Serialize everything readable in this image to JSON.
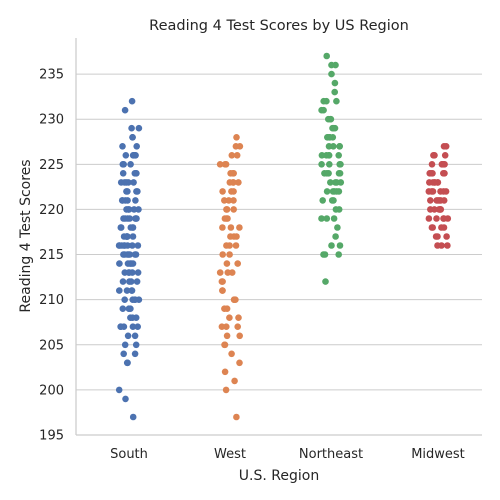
{
  "chart_data": {
    "type": "scatter",
    "subtype": "strip",
    "title": "Reading 4 Test Scores by US Region",
    "xlabel": "U.S. Region",
    "ylabel": "Reading 4 Test Scores",
    "categories": [
      "South",
      "West",
      "Northeast",
      "Midwest"
    ],
    "ylim": [
      195,
      239
    ],
    "yticks": [
      195,
      200,
      205,
      210,
      215,
      220,
      225,
      230,
      235
    ],
    "grid": "horizontal",
    "series": [
      {
        "category": "South",
        "color": "#4c72b0",
        "values": [
          232,
          231,
          229,
          229,
          228,
          228,
          227,
          227,
          226,
          226,
          226,
          226,
          226,
          225,
          225,
          225,
          224,
          224,
          224,
          224,
          223,
          223,
          223,
          223,
          223,
          222,
          222,
          222,
          222,
          221,
          221,
          221,
          221,
          221,
          220,
          220,
          220,
          220,
          220,
          219,
          219,
          219,
          219,
          219,
          219,
          219,
          218,
          218,
          218,
          218,
          218,
          217,
          217,
          217,
          217,
          217,
          217,
          216,
          216,
          216,
          216,
          216,
          216,
          216,
          216,
          215,
          215,
          215,
          215,
          215,
          215,
          215,
          214,
          214,
          214,
          214,
          214,
          213,
          213,
          213,
          213,
          213,
          212,
          212,
          212,
          212,
          211,
          211,
          211,
          211,
          210,
          210,
          210,
          210,
          210,
          209,
          209,
          209,
          208,
          208,
          208,
          207,
          207,
          207,
          207,
          207,
          206,
          206,
          205,
          205,
          204,
          204,
          203,
          203,
          200,
          199,
          197
        ]
      },
      {
        "category": "West",
        "color": "#dd8452",
        "values": [
          228,
          227,
          227,
          226,
          226,
          225,
          225,
          225,
          224,
          224,
          224,
          223,
          223,
          223,
          223,
          222,
          222,
          222,
          221,
          221,
          221,
          220,
          220,
          220,
          219,
          219,
          219,
          218,
          218,
          218,
          217,
          217,
          217,
          216,
          216,
          216,
          215,
          215,
          214,
          214,
          213,
          213,
          213,
          212,
          212,
          211,
          211,
          210,
          210,
          210,
          209,
          209,
          208,
          208,
          207,
          207,
          207,
          206,
          206,
          205,
          205,
          204,
          203,
          202,
          201,
          200,
          197
        ]
      },
      {
        "category": "Northeast",
        "color": "#55a868",
        "values": [
          237,
          236,
          236,
          235,
          234,
          233,
          232,
          232,
          232,
          231,
          231,
          230,
          230,
          230,
          229,
          229,
          229,
          228,
          228,
          228,
          228,
          228,
          227,
          227,
          227,
          227,
          226,
          226,
          226,
          226,
          226,
          225,
          225,
          225,
          225,
          224,
          224,
          224,
          224,
          224,
          223,
          223,
          223,
          223,
          222,
          222,
          222,
          222,
          222,
          221,
          221,
          221,
          220,
          220,
          219,
          219,
          219,
          218,
          217,
          216,
          216,
          215,
          215,
          215,
          212
        ]
      },
      {
        "category": "Midwest",
        "color": "#c44e52",
        "values": [
          227,
          227,
          226,
          226,
          226,
          225,
          225,
          225,
          225,
          225,
          224,
          224,
          224,
          224,
          224,
          223,
          223,
          223,
          223,
          223,
          223,
          222,
          222,
          222,
          222,
          222,
          222,
          221,
          221,
          221,
          221,
          221,
          221,
          220,
          220,
          220,
          220,
          220,
          220,
          219,
          219,
          219,
          219,
          219,
          218,
          218,
          218,
          218,
          217,
          217,
          217,
          216,
          216,
          216
        ]
      }
    ]
  }
}
